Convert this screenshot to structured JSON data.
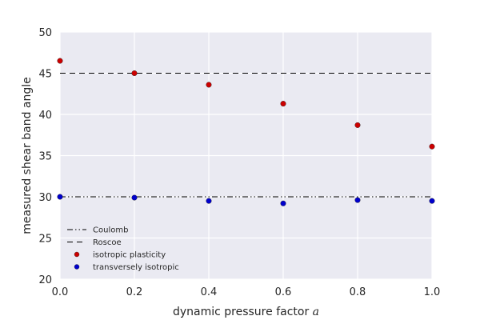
{
  "chart_data": {
    "type": "scatter",
    "xlabel": "dynamic pressure factor",
    "xlabel_symbol": "a",
    "ylabel": "measured shear band angle",
    "xlim": [
      0.0,
      1.0
    ],
    "ylim": [
      20,
      50
    ],
    "x_ticks": [
      "0.0",
      "0.2",
      "0.4",
      "0.6",
      "0.8",
      "1.0"
    ],
    "y_ticks": [
      "20",
      "25",
      "30",
      "35",
      "40",
      "45",
      "50"
    ],
    "x_tick_values": [
      0.0,
      0.2,
      0.4,
      0.6,
      0.8,
      1.0
    ],
    "y_tick_values": [
      20,
      25,
      30,
      35,
      40,
      45,
      50
    ],
    "grid": true,
    "background": "#eaeaf2",
    "legend_position": "lower-left",
    "reference_lines": [
      {
        "name": "Coulomb",
        "y": 30.0,
        "style": "dash-dot-dot",
        "color": "#000000"
      },
      {
        "name": "Roscoe",
        "y": 45.0,
        "style": "dashed",
        "color": "#000000"
      }
    ],
    "series": [
      {
        "name": "isotropic plasticity",
        "color": "#cc0000",
        "x": [
          0.0,
          0.2,
          0.4,
          0.6,
          0.8,
          1.0
        ],
        "y": [
          46.5,
          45.0,
          43.6,
          41.3,
          38.7,
          36.1
        ]
      },
      {
        "name": "transversely isotropic",
        "color": "#0000cc",
        "x": [
          0.0,
          0.2,
          0.4,
          0.6,
          0.8,
          1.0
        ],
        "y": [
          30.0,
          29.9,
          29.5,
          29.2,
          29.6,
          29.5
        ]
      }
    ]
  }
}
